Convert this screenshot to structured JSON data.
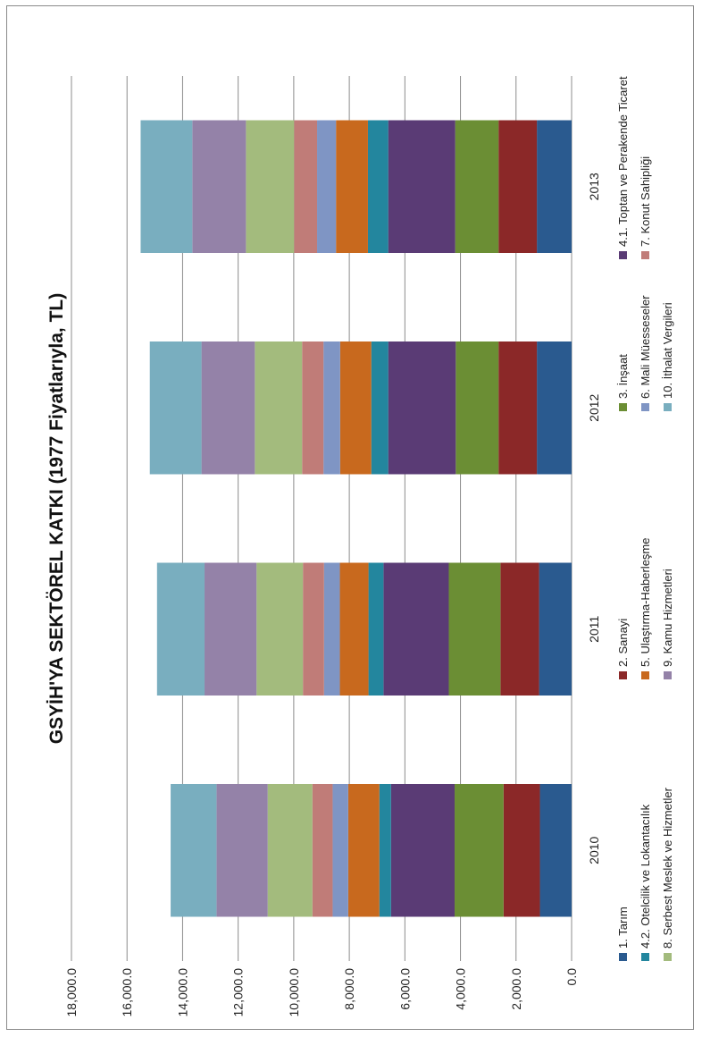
{
  "chart_data": {
    "type": "bar",
    "orientation": "stacked-vertical",
    "title": "GSYİH'YA SEKTÖREL KATKI  (1977 Fiyatlarıyla, TL)",
    "categories": [
      "2010",
      "2011",
      "2012",
      "2013"
    ],
    "ylim": [
      0,
      18000
    ],
    "yticks": [
      "0.0",
      "2,000.0",
      "4,000.0",
      "6,000.0",
      "8,000.0",
      "10,000.0",
      "12,000.0",
      "14,000.0",
      "16,000.0",
      "18,000.0"
    ],
    "grid": true,
    "legend_position": "bottom",
    "series": [
      {
        "name": "1. Tarım",
        "color": "#2a5a8f",
        "values": [
          1140,
          1170,
          1250,
          1250
        ]
      },
      {
        "name": "2. Sanayi",
        "color": "#8b2828",
        "values": [
          1310,
          1390,
          1380,
          1380
        ]
      },
      {
        "name": "3. İnşaat",
        "color": "#6b8e34",
        "values": [
          1760,
          1860,
          1540,
          1560
        ]
      },
      {
        "name": "4.1. Toptan ve Perakende Ticaret",
        "color": "#5a3b75",
        "values": [
          2290,
          2350,
          2430,
          2410
        ]
      },
      {
        "name": "4.2. Otelcilik ve Lokantacılık",
        "color": "#23869e",
        "values": [
          420,
          540,
          610,
          730
        ]
      },
      {
        "name": "5. Ulaştırma-Haberleşme",
        "color": "#c8691e",
        "values": [
          1120,
          1030,
          1120,
          1150
        ]
      },
      {
        "name": "6. Mali Müesseseler",
        "color": "#7f95c4",
        "values": [
          560,
          570,
          600,
          680
        ]
      },
      {
        "name": "7. Konut Sahipliği",
        "color": "#c07c78",
        "values": [
          730,
          760,
          770,
          830
        ]
      },
      {
        "name": "8. Serbest Meslek ve Hizmetler",
        "color": "#a3bb7d",
        "values": [
          1610,
          1670,
          1700,
          1730
        ]
      },
      {
        "name": "9. Kamu Hizmetleri",
        "color": "#9482a8",
        "values": [
          1840,
          1870,
          1920,
          1930
        ]
      },
      {
        "name": "10. İthalat Vergileri",
        "color": "#79aebf",
        "values": [
          1650,
          1710,
          1860,
          1860
        ]
      }
    ]
  }
}
